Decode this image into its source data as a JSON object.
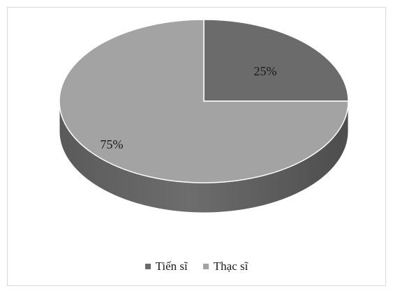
{
  "chart_data": {
    "type": "pie",
    "title": "",
    "categories": [
      "Tiến sĩ",
      "Thạc sĩ"
    ],
    "values": [
      25,
      75
    ],
    "labels": [
      "25%",
      "75%"
    ],
    "colors": {
      "Tiến sĩ": "#6b6b6b",
      "Thạc sĩ": "#a3a3a3"
    },
    "legend_position": "bottom",
    "style": "3d"
  }
}
